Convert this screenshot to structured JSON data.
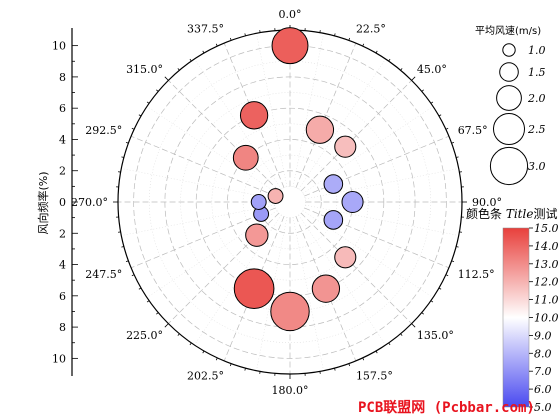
{
  "chart_data": {
    "type": "scatter",
    "subtype": "polar-bubble",
    "ylabel": "风向频率(%)",
    "y_ticks": [
      "10",
      "8",
      "6",
      "4",
      "2",
      "0",
      "2",
      "4",
      "6",
      "8",
      "10"
    ],
    "r_range": [
      0,
      11
    ],
    "angle_labels": [
      "0.0°",
      "22.5°",
      "45.0°",
      "67.5°",
      "90.0°",
      "112.5°",
      "135.0°",
      "157.5°",
      "180.0°",
      "202.5°",
      "225.0°",
      "247.5°",
      "270.0°",
      "292.5°",
      "315.0°",
      "337.5°"
    ],
    "grid": true,
    "size_legend": {
      "title": "平均风速(m/s)",
      "entries": [
        {
          "label": "1.0",
          "value": 1.0
        },
        {
          "label": "1.5",
          "value": 1.5
        },
        {
          "label": "2.0",
          "value": 2.0
        },
        {
          "label": "2.5",
          "value": 2.5
        },
        {
          "label": "3.0",
          "value": 3.0
        }
      ]
    },
    "colorbar": {
      "title_plain": "颜色条 ",
      "title_italic": "Title",
      "title_tail": "测试",
      "min": 5.0,
      "max": 15.0,
      "colors": [
        "#4a4af0",
        "#ffffff",
        "#e8403c"
      ],
      "tick_labels": [
        "15.0",
        "14.0",
        "13.0",
        "12.0",
        "11.0",
        "10.0",
        "9.0",
        "8.0",
        "7.0",
        "6.0",
        "5.0"
      ]
    },
    "points": [
      {
        "direction": 0.0,
        "frequency": 10.0,
        "speed": 2.9,
        "color_value": 14.2
      },
      {
        "direction": 22.5,
        "frequency": 5.0,
        "speed": 2.2,
        "color_value": 12.2
      },
      {
        "direction": 45.0,
        "frequency": 5.0,
        "speed": 1.7,
        "color_value": 11.7
      },
      {
        "direction": 67.5,
        "frequency": 3.0,
        "speed": 1.5,
        "color_value": 7.7
      },
      {
        "direction": 90.0,
        "frequency": 4.0,
        "speed": 1.7,
        "color_value": 7.6
      },
      {
        "direction": 112.5,
        "frequency": 3.0,
        "speed": 1.5,
        "color_value": 7.5
      },
      {
        "direction": 135.0,
        "frequency": 5.0,
        "speed": 1.7,
        "color_value": 11.8
      },
      {
        "direction": 157.5,
        "frequency": 6.0,
        "speed": 2.2,
        "color_value": 12.8
      },
      {
        "direction": 180.0,
        "frequency": 7.0,
        "speed": 3.1,
        "color_value": 13.1
      },
      {
        "direction": 202.5,
        "frequency": 6.0,
        "speed": 3.2,
        "color_value": 14.4
      },
      {
        "direction": 225.0,
        "frequency": 3.0,
        "speed": 1.8,
        "color_value": 12.7
      },
      {
        "direction": 247.5,
        "frequency": 2.0,
        "speed": 1.2,
        "color_value": 7.2
      },
      {
        "direction": 270.0,
        "frequency": 2.0,
        "speed": 1.2,
        "color_value": 7.4
      },
      {
        "direction": 292.5,
        "frequency": 1.0,
        "speed": 1.2,
        "color_value": 12.0
      },
      {
        "direction": 315.0,
        "frequency": 4.0,
        "speed": 2.0,
        "color_value": 13.2
      },
      {
        "direction": 337.5,
        "frequency": 6.0,
        "speed": 2.2,
        "color_value": 14.1
      }
    ]
  },
  "watermark": "PCB联盟网 (Pcbbar.com)"
}
